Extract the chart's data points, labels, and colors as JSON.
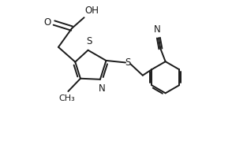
{
  "bg_color": "#ffffff",
  "line_color": "#1a1a1a",
  "text_color": "#1a1a1a",
  "line_width": 1.4,
  "font_size": 8.5,
  "figsize": [
    3.13,
    1.88
  ],
  "dpi": 100,
  "xlim": [
    0.0,
    1.0
  ],
  "ylim": [
    0.0,
    0.75
  ]
}
